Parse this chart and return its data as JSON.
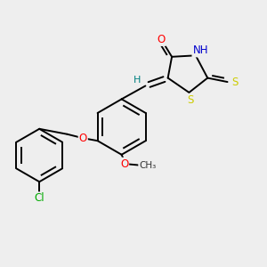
{
  "background_color": "#eeeeee",
  "bond_color": "#000000",
  "atom_colors": {
    "O": "#ff0000",
    "N": "#0000cd",
    "S": "#cccc00",
    "Cl": "#00aa00",
    "H": "#008080"
  },
  "font_size": 8.5,
  "lw": 1.4
}
